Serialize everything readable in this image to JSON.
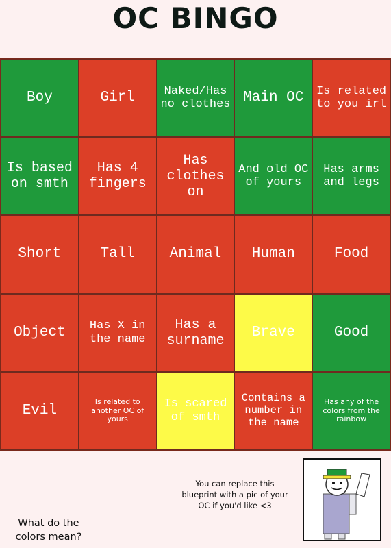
{
  "header": {
    "title": "OC BINGO"
  },
  "grid": {
    "cells": [
      [
        {
          "text": "Boy",
          "color": "#1f9a3b"
        },
        {
          "text": "Girl",
          "color": "#dc3f27"
        },
        {
          "text": "Naked/Has no clothes",
          "color": "#1f9a3b"
        },
        {
          "text": "Main OC",
          "color": "#1f9a3b"
        },
        {
          "text": "Is related to you irl",
          "color": "#dc3f27"
        }
      ],
      [
        {
          "text": "Is based on smth",
          "color": "#1f9a3b"
        },
        {
          "text": "Has 4 fingers",
          "color": "#dc3f27"
        },
        {
          "text": "Has clothes on",
          "color": "#dc3f27"
        },
        {
          "text": "And old OC of yours",
          "color": "#1f9a3b"
        },
        {
          "text": "Has arms and legs",
          "color": "#1f9a3b"
        }
      ],
      [
        {
          "text": "Short",
          "color": "#dc3f27"
        },
        {
          "text": "Tall",
          "color": "#dc3f27"
        },
        {
          "text": "Animal",
          "color": "#dc3f27"
        },
        {
          "text": "Human",
          "color": "#dc3f27"
        },
        {
          "text": "Food",
          "color": "#dc3f27"
        }
      ],
      [
        {
          "text": "Object",
          "color": "#dc3f27"
        },
        {
          "text": "Has X in the name",
          "color": "#dc3f27"
        },
        {
          "text": "Has a surname",
          "color": "#dc3f27"
        },
        {
          "text": "Brave",
          "color": "#fdfa48"
        },
        {
          "text": "Good",
          "color": "#1f9a3b"
        }
      ],
      [
        {
          "text": "Evil",
          "color": "#dc3f27"
        },
        {
          "text": "Is related to another OC of yours",
          "color": "#dc3f27"
        },
        {
          "text": "Is scared of smth",
          "color": "#fdfa48"
        },
        {
          "text": "Contains a number in the name",
          "color": "#dc3f27"
        },
        {
          "text": "Has any of the colors from the rainbow",
          "color": "#1f9a3b"
        }
      ]
    ]
  },
  "footer": {
    "note": "You can replace this blueprint with a pic of your OC if you'd like <3",
    "question": "What do the colors mean?"
  }
}
